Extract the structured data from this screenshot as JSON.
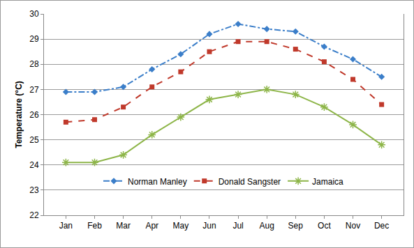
{
  "chart_data": {
    "type": "line",
    "y_label": "Temperature (°C)",
    "categories": [
      "Jan",
      "Feb",
      "Mar",
      "Apr",
      "May",
      "Jun",
      "Jul",
      "Aug",
      "Sep",
      "Oct",
      "Nov",
      "Dec"
    ],
    "series": [
      {
        "name": "Norman Manley",
        "color": "#3b7ec9",
        "marker": "diamond",
        "line_style": "dashdot",
        "values": [
          26.9,
          26.9,
          27.1,
          27.8,
          28.4,
          29.2,
          29.6,
          29.4,
          29.3,
          28.7,
          28.2,
          27.5
        ]
      },
      {
        "name": "Donald Sangster",
        "color": "#c0392b",
        "marker": "square",
        "line_style": "dash",
        "values": [
          25.7,
          25.8,
          26.3,
          27.1,
          27.7,
          28.5,
          28.9,
          28.9,
          28.6,
          28.1,
          27.4,
          26.4
        ]
      },
      {
        "name": "Jamaica",
        "color": "#8db548",
        "marker": "asterisk",
        "line_style": "solid",
        "values": [
          24.1,
          24.1,
          24.4,
          25.2,
          25.9,
          26.6,
          26.8,
          27.0,
          26.8,
          26.3,
          25.6,
          24.8
        ]
      }
    ],
    "ylim": [
      22,
      30
    ],
    "yticks": [
      22,
      23,
      24,
      25,
      26,
      27,
      28,
      29,
      30
    ],
    "grid": true,
    "legend": "bottom"
  }
}
